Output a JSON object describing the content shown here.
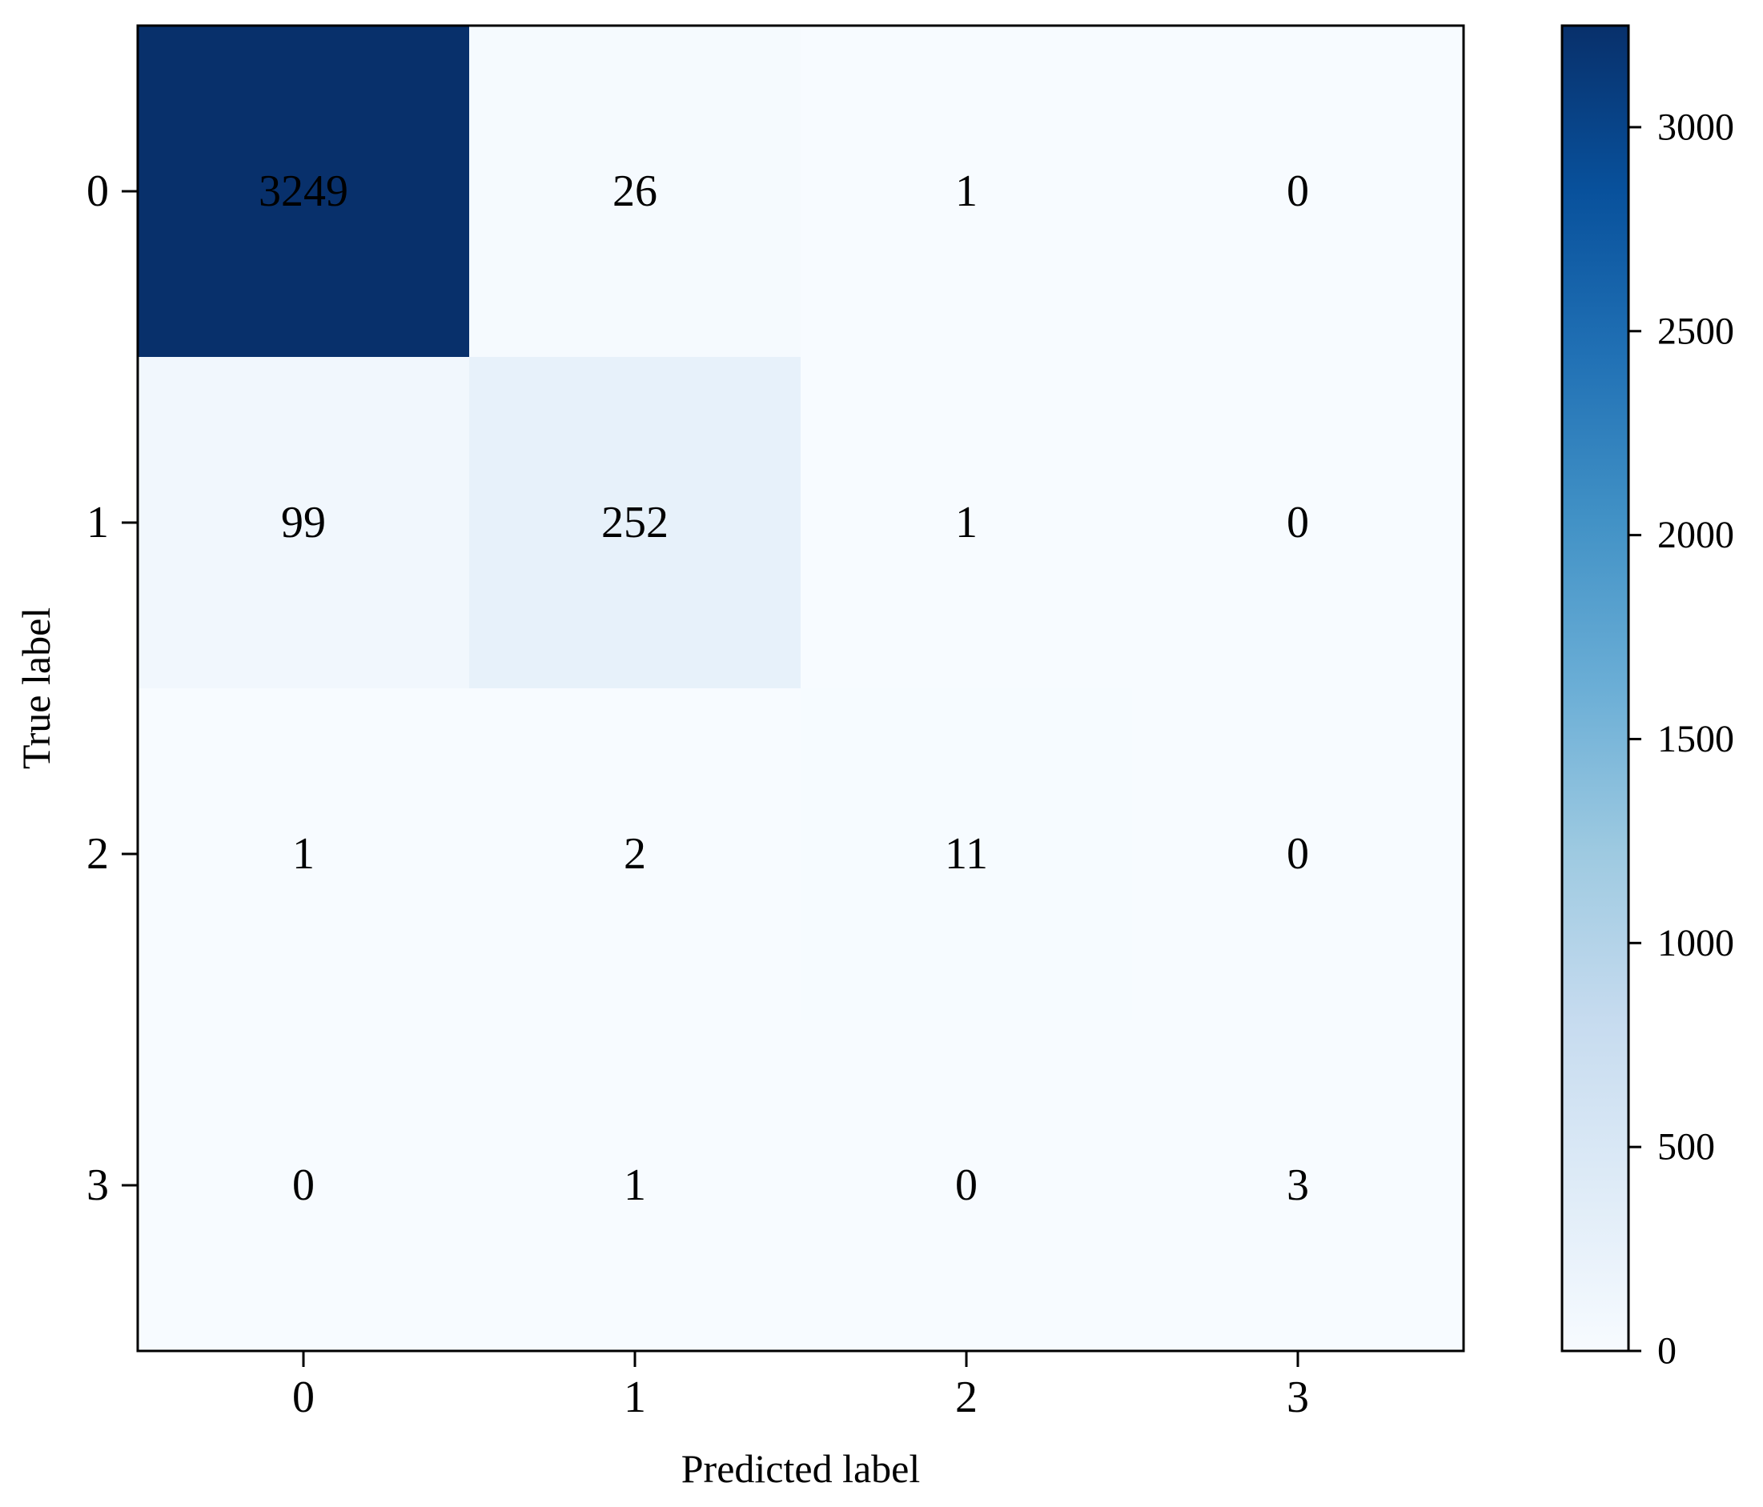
{
  "chart_data": {
    "type": "heatmap",
    "title": "",
    "xlabel": "Predicted label",
    "ylabel": "True label",
    "x_categories": [
      "0",
      "1",
      "2",
      "3"
    ],
    "y_categories": [
      "0",
      "1",
      "2",
      "3"
    ],
    "matrix": [
      [
        3249,
        26,
        1,
        0
      ],
      [
        99,
        252,
        1,
        0
      ],
      [
        1,
        2,
        11,
        0
      ],
      [
        0,
        1,
        0,
        3
      ]
    ],
    "colormap": "Blues",
    "colormap_stops": [
      "#f7fbff",
      "#deebf7",
      "#c6dbef",
      "#9ecae1",
      "#6baed6",
      "#4292c6",
      "#2171b5",
      "#08519c",
      "#08306b"
    ],
    "colorbar": {
      "range": [
        0,
        3249
      ],
      "ticks": [
        0,
        500,
        1000,
        1500,
        2000,
        2500,
        3000
      ]
    },
    "grid": false
  }
}
